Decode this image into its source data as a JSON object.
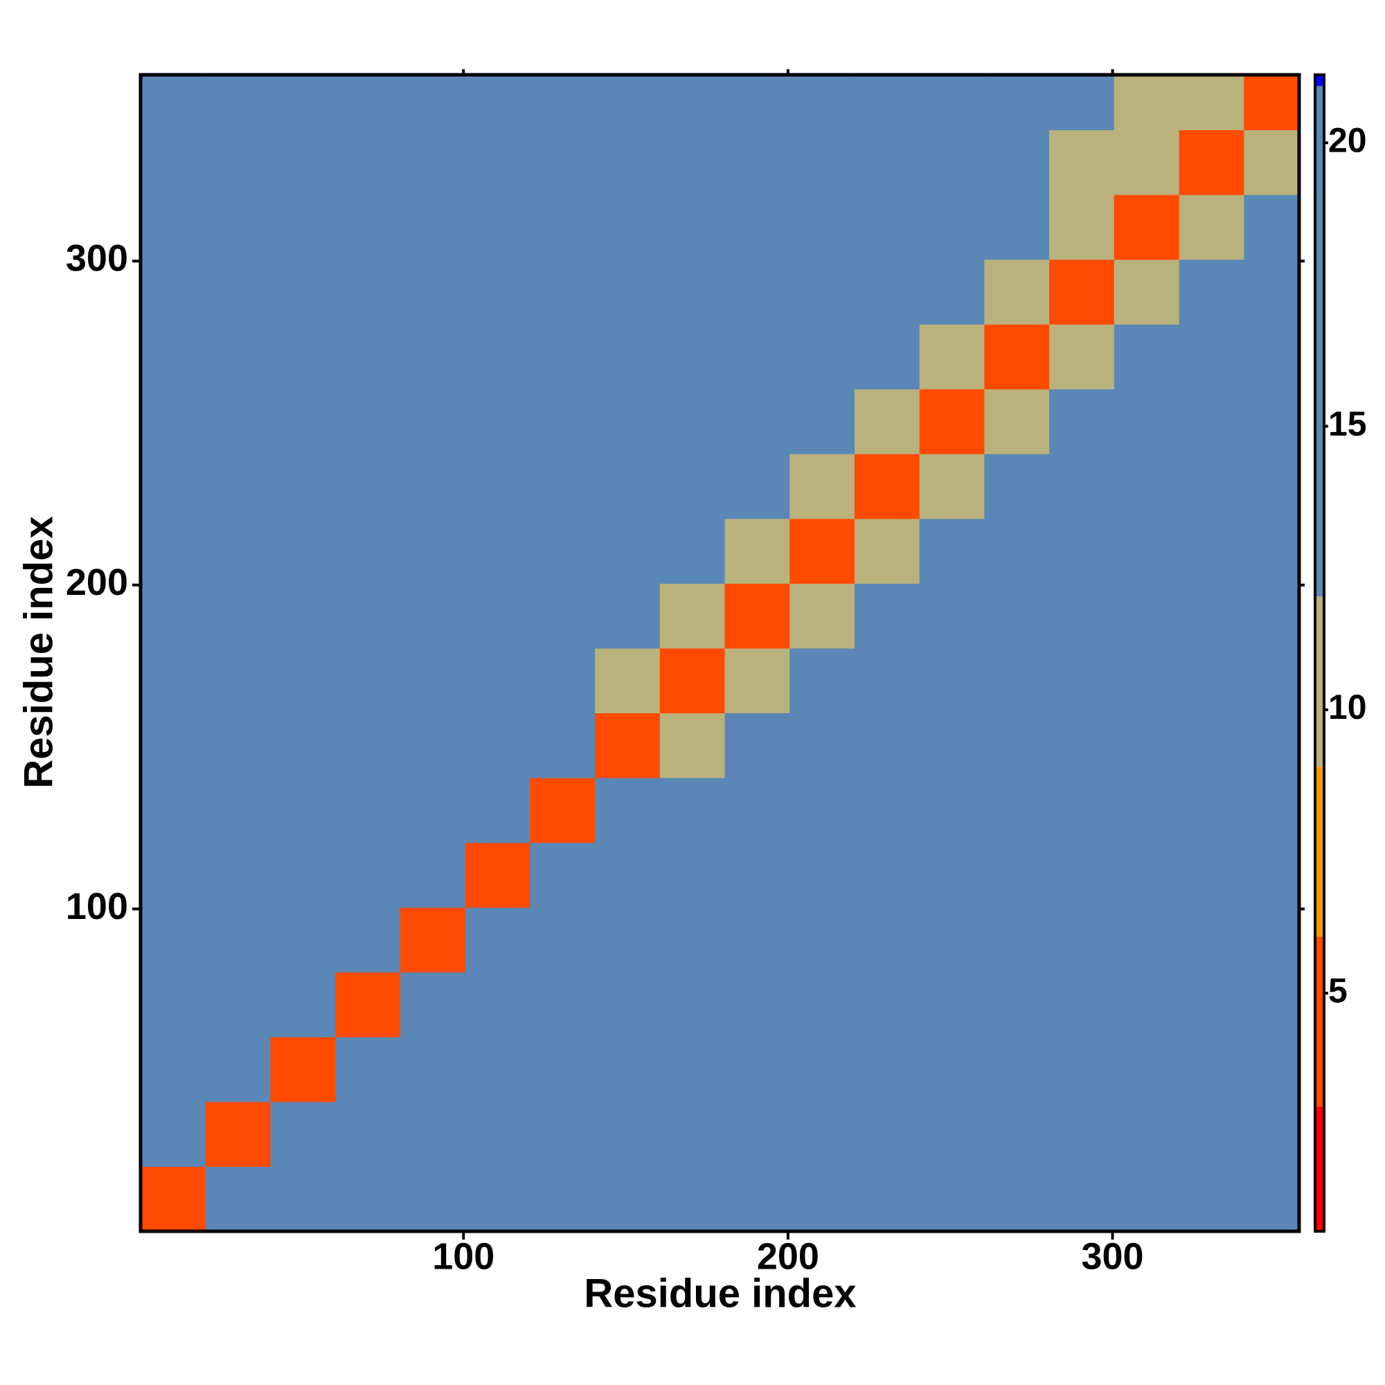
{
  "chart_data": {
    "type": "heatmap",
    "x_label": "Residue index",
    "y_label": "Residue index",
    "xlim": [
      0.5,
      357.5
    ],
    "ylim": [
      0.5,
      357.5
    ],
    "xticks": [
      100,
      200,
      300
    ],
    "yticks": [
      100,
      200,
      300
    ],
    "x_bins": [
      0.5,
      20.5,
      40.5,
      60.5,
      80.5,
      100.5,
      120.5,
      140.5,
      160.5,
      180.5,
      200.5,
      220.5,
      240.5,
      260.5,
      280.5,
      300.5,
      320.5,
      340.5,
      357.5
    ],
    "y_bins": [
      0.5,
      20.5,
      40.5,
      60.5,
      80.5,
      100.5,
      120.5,
      140.5,
      160.5,
      180.5,
      200.5,
      220.5,
      240.5,
      260.5,
      280.5,
      300.5,
      320.5,
      340.5,
      357.5
    ],
    "values": [
      [
        6,
        19,
        21,
        21,
        21,
        21,
        21,
        21,
        21,
        21,
        21,
        21,
        21,
        21,
        21,
        21,
        21,
        21
      ],
      [
        19,
        6,
        19,
        21,
        21,
        21,
        21,
        21,
        21,
        21,
        21,
        21,
        21,
        21,
        21,
        21,
        21,
        21
      ],
      [
        21,
        19,
        6,
        19,
        21,
        21,
        21,
        21,
        21,
        21,
        21,
        21,
        21,
        21,
        21,
        21,
        21,
        21
      ],
      [
        21,
        21,
        19,
        6,
        19,
        21,
        21,
        21,
        21,
        21,
        21,
        21,
        21,
        21,
        21,
        21,
        21,
        21
      ],
      [
        21,
        21,
        21,
        19,
        6,
        18,
        20,
        21,
        21,
        21,
        21,
        21,
        21,
        21,
        21,
        21,
        21,
        21
      ],
      [
        21,
        21,
        21,
        21,
        18,
        6,
        17,
        19,
        20,
        20,
        20,
        21,
        21,
        21,
        21,
        21,
        21,
        21
      ],
      [
        21,
        21,
        21,
        21,
        20,
        17,
        6,
        14,
        19,
        19,
        20,
        20,
        20,
        20,
        20,
        21,
        21,
        21
      ],
      [
        21,
        21,
        21,
        21,
        21,
        19,
        14,
        6,
        12,
        16,
        16,
        17,
        18,
        18,
        19,
        19,
        20,
        20
      ],
      [
        21,
        21,
        21,
        21,
        21,
        20,
        19,
        12,
        6,
        12,
        16,
        17,
        16,
        17,
        17,
        18,
        18,
        19
      ],
      [
        21,
        21,
        21,
        21,
        21,
        20,
        19,
        16,
        12,
        6,
        12,
        16,
        16,
        21,
        16,
        17,
        17,
        18
      ],
      [
        21,
        21,
        21,
        21,
        21,
        20,
        20,
        16,
        17,
        12,
        6,
        12,
        16,
        16,
        17,
        16,
        17,
        17
      ],
      [
        21,
        21,
        21,
        21,
        21,
        21,
        20,
        17,
        16,
        16,
        12,
        6,
        12,
        16,
        16,
        21,
        16,
        17
      ],
      [
        21,
        21,
        21,
        21,
        21,
        21,
        20,
        18,
        17,
        16,
        16,
        12,
        6,
        12,
        16,
        16,
        16,
        17
      ],
      [
        21,
        21,
        21,
        21,
        21,
        21,
        20,
        18,
        17,
        21,
        16,
        16,
        12,
        6,
        12,
        16,
        16,
        16
      ],
      [
        21,
        21,
        21,
        21,
        21,
        21,
        20,
        19,
        17,
        16,
        17,
        16,
        16,
        12,
        6,
        12,
        21,
        16
      ],
      [
        21,
        21,
        21,
        21,
        21,
        21,
        21,
        19,
        18,
        17,
        16,
        21,
        16,
        16,
        12,
        6,
        12,
        16
      ],
      [
        21,
        21,
        21,
        21,
        21,
        21,
        21,
        20,
        18,
        17,
        17,
        16,
        16,
        21,
        12,
        12,
        6,
        12
      ],
      [
        21,
        21,
        21,
        21,
        21,
        21,
        21,
        20,
        19,
        18,
        17,
        17,
        16,
        16,
        16,
        12,
        12,
        6
      ]
    ],
    "clim": [
      0.8,
      21.2
    ],
    "cticks": [
      5,
      10,
      15,
      20
    ],
    "color_stops": [
      {
        "max": 3,
        "color": "#ff0000"
      },
      {
        "max": 6,
        "color": "#ff4a00"
      },
      {
        "max": 9,
        "color": "#ff9a00"
      },
      {
        "max": 12,
        "color": "#b9b27c"
      },
      {
        "max": 21,
        "color": "#5b87b6"
      }
    ],
    "above_color": "#0000ff"
  }
}
